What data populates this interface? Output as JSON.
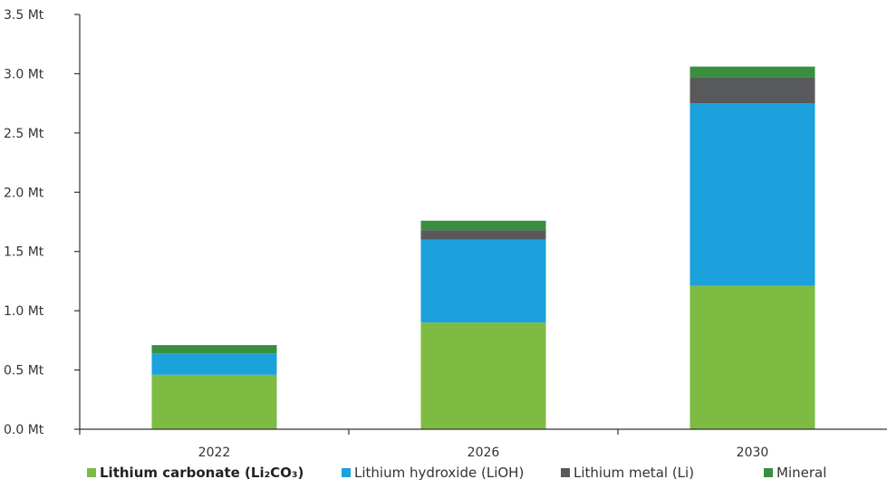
{
  "chart_data": {
    "type": "bar",
    "stacked": true,
    "title": "",
    "xlabel": "",
    "ylabel": "",
    "categories": [
      "2022",
      "2026",
      "2030"
    ],
    "ylim": [
      0,
      3.5
    ],
    "y_ticks": [
      0.0,
      0.5,
      1.0,
      1.5,
      2.0,
      2.5,
      3.0,
      3.5
    ],
    "y_tick_labels": [
      "0.0 Mt",
      "0.5 Mt",
      "1.0 Mt",
      "1.5 Mt",
      "2.0 Mt",
      "2.5 Mt",
      "3.0 Mt",
      "3.5 Mt"
    ],
    "grid": false,
    "legend_position": "bottom",
    "series": [
      {
        "name": "Lithium carbonate (Li₂CO₃)",
        "color": "#7DBB42",
        "values": [
          0.46,
          0.9,
          1.21
        ]
      },
      {
        "name": "Lithium hydroxide (LiOH)",
        "color": "#1BA1DB",
        "values": [
          0.18,
          0.7,
          1.54
        ]
      },
      {
        "name": "Lithium metal (Li)",
        "color": "#58595B",
        "values": [
          0.0,
          0.08,
          0.22
        ]
      },
      {
        "name": "Mineral",
        "color": "#3A8E3F",
        "values": [
          0.07,
          0.08,
          0.09
        ]
      }
    ]
  }
}
